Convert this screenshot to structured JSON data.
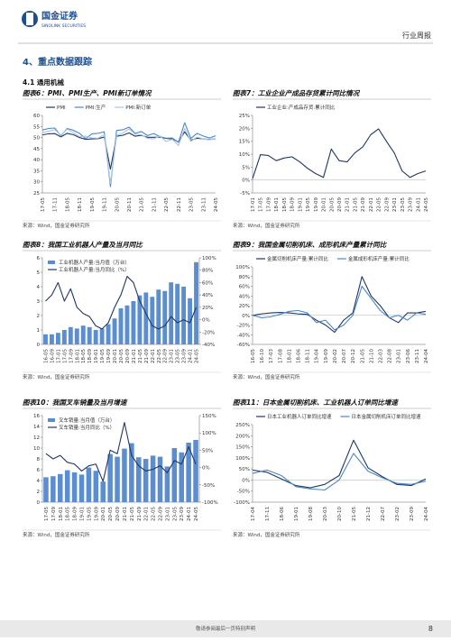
{
  "header": {
    "logo_cn": "国金证券",
    "logo_en": "SINOLINK SECURITIES",
    "report_type": "行业周报"
  },
  "section": {
    "title": "4、重点数据跟踪"
  },
  "subsection": {
    "title": "4.1 通用机械"
  },
  "footer": {
    "disclaimer": "敬请参阅最后一页特别声明",
    "page": "8"
  },
  "chart_data": [
    {
      "type": "line",
      "title": "图表6：PMI、PMI生产、PMI新订单情况",
      "source": "来源：Wind，国金证券研究所",
      "categories": [
        "17-05",
        null,
        "17-11",
        null,
        "18-05",
        null,
        "18-11",
        null,
        "19-05",
        null,
        "19-11",
        null,
        "20-05",
        null,
        "20-11",
        null,
        "21-05",
        null,
        "21-11",
        null,
        "22-05",
        null,
        "22-11",
        null,
        "23-05",
        null,
        "23-11",
        null,
        "24-05"
      ],
      "series": [
        {
          "name": "PMI",
          "color": "#1f3864",
          "values": [
            51.2,
            51.7,
            51.8,
            50.3,
            51.9,
            51.3,
            50.0,
            49.2,
            49.4,
            49.5,
            50.2,
            35.7,
            50.6,
            51.0,
            52.1,
            50.6,
            51.0,
            50.1,
            50.1,
            50.2,
            49.6,
            49.4,
            48.0,
            52.6,
            48.8,
            49.7,
            49.4,
            49.1,
            49.5
          ]
        },
        {
          "name": "PMI:生产",
          "color": "#4a86c8",
          "values": [
            53.4,
            54.1,
            54.3,
            50.7,
            54.1,
            53.3,
            51.9,
            49.5,
            51.7,
            51.9,
            52.6,
            27.8,
            53.2,
            53.5,
            54.7,
            51.9,
            52.7,
            50.9,
            51.8,
            50.4,
            49.7,
            49.8,
            47.8,
            56.7,
            49.6,
            51.9,
            50.7,
            49.8,
            50.8
          ]
        },
        {
          "name": "PMI:新订单",
          "color": "#a9c4e4",
          "values": [
            52.3,
            52.8,
            53.6,
            51.0,
            53.8,
            52.2,
            50.4,
            50.6,
            49.8,
            49.7,
            51.3,
            29.3,
            50.9,
            52.0,
            53.9,
            51.5,
            51.3,
            49.6,
            49.4,
            50.7,
            48.2,
            49.2,
            46.4,
            54.1,
            48.3,
            50.2,
            49.4,
            49.0,
            49.6
          ]
        }
      ],
      "ylim": [
        25,
        60
      ],
      "yticks": [
        25,
        30,
        35,
        40,
        45,
        50,
        55,
        60
      ]
    },
    {
      "type": "line",
      "title": "图表7：工业企业产成品存货累计同比情况",
      "source": "来源：Wind，国金证券研究所",
      "categories": [
        "17-01",
        "17-05",
        "17-09",
        "18-01",
        "18-05",
        "18-09",
        "19-01",
        "19-05",
        "19-09",
        "20-01",
        "20-05",
        "20-09",
        "21-01",
        "21-05",
        "21-09",
        "22-01",
        "22-05",
        "22-09",
        "23-01",
        "23-05",
        "23-09",
        "24-01",
        "24-05"
      ],
      "series": [
        {
          "name": "工业企业:产成品存货:累计同比",
          "color": "#1f3864",
          "values": [
            0.5,
            9.8,
            9.5,
            7.5,
            8.5,
            9.0,
            7.0,
            4.5,
            2.5,
            1.0,
            12.0,
            7.5,
            7.0,
            10.5,
            12.8,
            17.5,
            19.8,
            15.0,
            10.5,
            3.5,
            1.0,
            2.5,
            3.5
          ]
        }
      ],
      "ylim": [
        -5,
        25
      ],
      "yticks": [
        {
          "value": -5,
          "label": "-5%"
        },
        {
          "value": 0,
          "label": "0%"
        },
        {
          "value": 5,
          "label": "5%"
        },
        {
          "value": 10,
          "label": "10%"
        },
        {
          "value": 15,
          "label": "15%"
        },
        {
          "value": 20,
          "label": "20%"
        },
        {
          "value": 25,
          "label": "25%"
        }
      ]
    },
    {
      "type": "combo",
      "title": "图表8：我国工业机器人产量及当月同比",
      "source": "来源：Wind，国金证券研究所",
      "categories": [
        "16-05",
        "16-09",
        "17-01",
        "17-05",
        "17-09",
        "18-01",
        "18-05",
        "18-09",
        "19-01",
        "19-05",
        "19-09",
        "20-01",
        "20-05",
        "20-09",
        "21-01",
        "21-05",
        "21-09",
        "22-01",
        "22-05",
        "22-09",
        "23-01",
        "23-05",
        "23-09",
        "24-01",
        "24-05"
      ],
      "series": [
        {
          "name": "工业机器人产量:当月值（万台）",
          "type": "bar",
          "color": "#5b8ed0",
          "values": [
            0.7,
            0.7,
            0.8,
            1.0,
            1.2,
            1.1,
            1.3,
            1.2,
            1.0,
            1.1,
            1.4,
            1.8,
            2.5,
            2.7,
            3.0,
            3.4,
            3.6,
            3.3,
            3.8,
            3.7,
            4.3,
            4.2,
            4.0,
            3.2,
            5.7
          ]
        },
        {
          "name": "工业机器人产量:当月同比（%）",
          "type": "line",
          "axis": "y2",
          "color": "#1f3864",
          "values": [
            30,
            40,
            60,
            30,
            50,
            20,
            10,
            5,
            -10,
            -15,
            -5,
            20,
            40,
            70,
            60,
            30,
            10,
            -10,
            -15,
            -10,
            5,
            -5,
            0,
            -5,
            20
          ]
        }
      ],
      "ylim": [
        0,
        6
      ],
      "yticks": [
        0,
        1,
        2,
        3,
        4,
        5,
        6
      ],
      "y2lim": [
        -40,
        100
      ],
      "y2ticks": [
        {
          "value": -40,
          "label": "-40%"
        },
        {
          "value": -20,
          "label": "-20%"
        },
        {
          "value": 0,
          "label": "0%"
        },
        {
          "value": 20,
          "label": "20%"
        },
        {
          "value": 40,
          "label": "40%"
        },
        {
          "value": 60,
          "label": "60%"
        },
        {
          "value": 80,
          "label": "80%"
        },
        {
          "value": 100,
          "label": "100%"
        }
      ]
    },
    {
      "type": "line",
      "title": "图表9：我国金属切削机床、成形机床产量累计同比",
      "source": "来源：Wind，国金证券研究所",
      "categories": [
        "16-05",
        "16-10",
        "17-03",
        "17-08",
        "18-01",
        "18-06",
        "18-11",
        "19-04",
        "19-09",
        "20-02",
        "20-07",
        "20-12",
        "21-05",
        "21-10",
        "22-03",
        "22-08",
        "23-01",
        "23-06",
        "23-11",
        "24-04"
      ],
      "series": [
        {
          "name": "金属切削机床产量:累计同比",
          "color": "#1f3864",
          "values": [
            0,
            3,
            5,
            6,
            5,
            3,
            2,
            -10,
            -20,
            -35,
            -10,
            5,
            80,
            40,
            20,
            -5,
            -15,
            5,
            5,
            8
          ]
        },
        {
          "name": "金属成形机床产量:累计同比",
          "color": "#4a86c8",
          "values": [
            0,
            -5,
            -3,
            2,
            8,
            10,
            5,
            -15,
            -10,
            -30,
            -20,
            0,
            60,
            35,
            10,
            -5,
            0,
            -10,
            5,
            2
          ]
        }
      ],
      "ylim": [
        -60,
        100
      ],
      "yticks": [
        {
          "value": -60,
          "label": "-60%"
        },
        {
          "value": -40,
          "label": "-40%"
        },
        {
          "value": -20,
          "label": "-20%"
        },
        {
          "value": 0,
          "label": "0%"
        },
        {
          "value": 20,
          "label": "20%"
        },
        {
          "value": 40,
          "label": "40%"
        },
        {
          "value": 60,
          "label": "60%"
        },
        {
          "value": 80,
          "label": "80%"
        },
        {
          "value": 100,
          "label": "100%"
        }
      ]
    },
    {
      "type": "combo",
      "title": "图表10：我国叉车销量及当月增速",
      "source": "来源：Wind，国金证券研究所",
      "categories": [
        "17-05",
        "17-09",
        "18-01",
        "18-05",
        "18-09",
        "19-01",
        "19-05",
        "19-09",
        "20-01",
        "20-05",
        "20-09",
        "21-01",
        "21-05",
        "21-09",
        "22-01",
        "22-05",
        "22-09",
        "23-01",
        "23-05",
        "23-09",
        "24-01",
        "24-05"
      ],
      "series": [
        {
          "name": "叉车销量:当月值（万台）",
          "type": "bar",
          "color": "#5b8ed0",
          "values": [
            4.6,
            4.8,
            5.2,
            5.9,
            5.5,
            5.1,
            6.4,
            5.8,
            3.8,
            8.9,
            8.4,
            9.9,
            10.9,
            8.3,
            8.0,
            8.6,
            8.4,
            6.6,
            10.0,
            9.2,
            11.0,
            11.5
          ]
        },
        {
          "name": "叉车销量:当月同比（%）",
          "type": "line",
          "axis": "y2",
          "color": "#1f3864",
          "values": [
            40,
            25,
            35,
            15,
            10,
            -10,
            5,
            10,
            -40,
            50,
            40,
            130,
            35,
            5,
            -10,
            -5,
            5,
            -15,
            20,
            10,
            60,
            10
          ]
        }
      ],
      "ylim": [
        0,
        16
      ],
      "yticks": [
        0,
        2,
        4,
        6,
        8,
        10,
        12,
        14,
        16
      ],
      "y2lim": [
        -100,
        150
      ],
      "y2ticks": [
        {
          "value": -100,
          "label": "-100%"
        },
        {
          "value": -50,
          "label": "-50%"
        },
        {
          "value": 0,
          "label": "0%"
        },
        {
          "value": 50,
          "label": "50%"
        },
        {
          "value": 100,
          "label": "100%"
        },
        {
          "value": 150,
          "label": "150%"
        }
      ]
    },
    {
      "type": "line",
      "title": "图表11：日本金属切削机床、工业机器人订单同比增速",
      "source": "来源：Wind，国金证券研究所",
      "categories": [
        "17-04",
        "17-11",
        "18-06",
        "19-01",
        "19-08",
        "20-03",
        "20-10",
        "21-05",
        "21-12",
        "22-07",
        "23-02",
        "23-09",
        "24-04"
      ],
      "series": [
        {
          "name": "日本工业机器人订单同比增速",
          "color": "#1f3864",
          "values": [
            45,
            35,
            5,
            -25,
            -35,
            -20,
            20,
            180,
            55,
            15,
            -20,
            -25,
            5
          ]
        },
        {
          "name": "日本金属切削机床订单同比增速",
          "color": "#4a86c8",
          "values": [
            30,
            45,
            20,
            -30,
            -40,
            -45,
            0,
            120,
            40,
            10,
            -15,
            -20,
            -5
          ]
        }
      ],
      "ylim": [
        -100,
        250
      ],
      "yticks": [
        {
          "value": -100,
          "label": "-100%"
        },
        {
          "value": -50,
          "label": "-50%"
        },
        {
          "value": 0,
          "label": "0%"
        },
        {
          "value": 50,
          "label": "50%"
        },
        {
          "value": 100,
          "label": "100%"
        },
        {
          "value": 150,
          "label": "150%"
        },
        {
          "value": 200,
          "label": "200%"
        },
        {
          "value": 250,
          "label": "250%"
        }
      ]
    }
  ]
}
